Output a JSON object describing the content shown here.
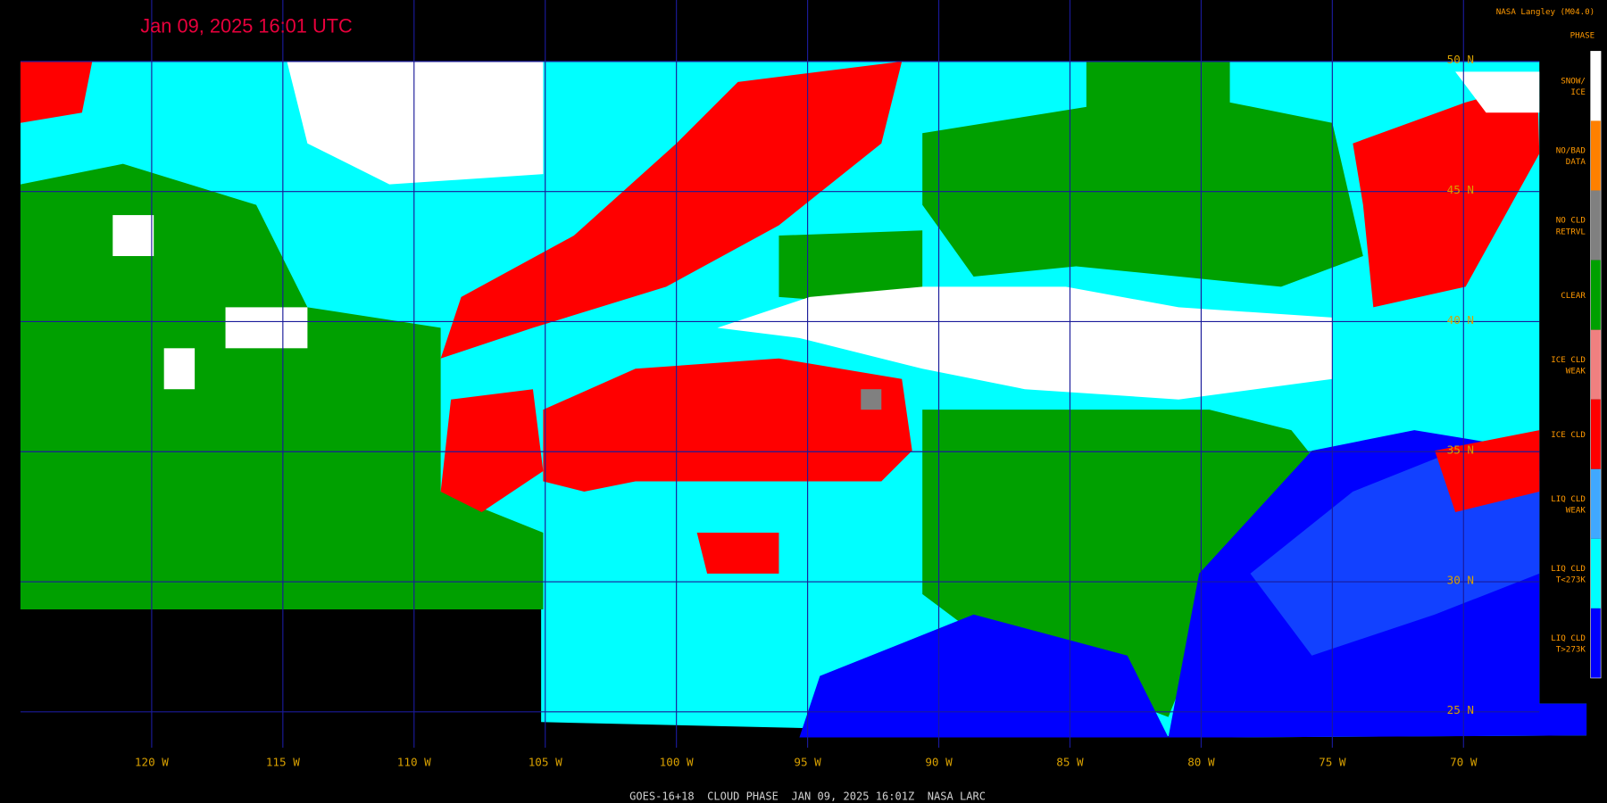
{
  "header": {
    "title": "Jan 09, 2025 16:01 UTC",
    "credit": "NASA Langley (M04.0)"
  },
  "legend": {
    "title": "PHASE",
    "items": [
      {
        "lines": [
          "SNOW/",
          "ICE"
        ],
        "color": "#ffffff"
      },
      {
        "lines": [
          "NO/BAD",
          "DATA"
        ],
        "color": "#ff8000"
      },
      {
        "lines": [
          "NO CLD",
          "RETRVL"
        ],
        "color": "#808080"
      },
      {
        "lines": [
          "CLEAR"
        ],
        "color": "#00a000"
      },
      {
        "lines": [
          "ICE CLD",
          "WEAK"
        ],
        "color": "#f08080"
      },
      {
        "lines": [
          "ICE CLD"
        ],
        "color": "#ff0000"
      },
      {
        "lines": [
          "LIQ CLD",
          "WEAK"
        ],
        "color": "#40a8ff"
      },
      {
        "lines": [
          "LIQ CLD",
          "T<273K"
        ],
        "color": "#00ffff"
      },
      {
        "lines": [
          "LIQ CLD",
          "T>273K"
        ],
        "color": "#0000ff"
      }
    ]
  },
  "longitude_labels": [
    "120 W",
    "115 W",
    "110 W",
    "105 W",
    "100 W",
    "95 W",
    "90 W",
    "85 W",
    "80 W",
    "75 W",
    "70 W"
  ],
  "latitude_labels": [
    "50 N",
    "45 N",
    "40 N",
    "35 N",
    "30 N",
    "25 N"
  ],
  "footer": "GOES-16+18  CLOUD PHASE  JAN 09, 2025 16:01Z  NASA LARC"
}
